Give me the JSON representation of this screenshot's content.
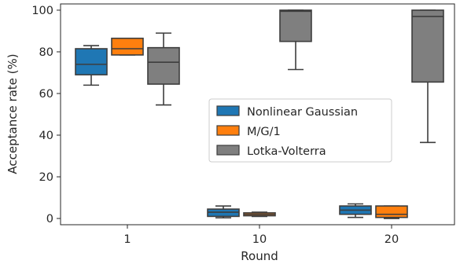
{
  "chart_data": {
    "type": "box",
    "title": "",
    "xlabel": "Round",
    "ylabel": "Acceptance rate (%)",
    "ylim": [
      -3,
      103
    ],
    "yticks": [
      0,
      20,
      40,
      60,
      80,
      100
    ],
    "categories": [
      "1",
      "10",
      "20"
    ],
    "grid": false,
    "legend_position": "center-right",
    "series": [
      {
        "name": "Nonlinear Gaussian",
        "color": "#1f77b4",
        "boxes": [
          {
            "category": "1",
            "whisker_low": 64,
            "q1": 69,
            "median": 74,
            "q3": 81.5,
            "whisker_high": 83
          },
          {
            "category": "10",
            "whisker_low": 0.3,
            "q1": 1,
            "median": 3,
            "q3": 4.5,
            "whisker_high": 6
          },
          {
            "category": "20",
            "whisker_low": 0.5,
            "q1": 2,
            "median": 4,
            "q3": 6,
            "whisker_high": 7
          }
        ]
      },
      {
        "name": "M/G/1",
        "color": "#ff7f0e",
        "boxes": [
          {
            "category": "1",
            "whisker_low": 78.5,
            "q1": 78.5,
            "median": 81.5,
            "q3": 86.5,
            "whisker_high": 86.5
          },
          {
            "category": "10",
            "whisker_low": 1,
            "q1": 1.3,
            "median": 2,
            "q3": 2.7,
            "whisker_high": 3
          },
          {
            "category": "20",
            "whisker_low": 0,
            "q1": 0.5,
            "median": 2,
            "q3": 6,
            "whisker_high": 6
          }
        ]
      },
      {
        "name": "Lotka-Volterra",
        "color": "#7f7f7f",
        "boxes": [
          {
            "category": "1",
            "whisker_low": 54.5,
            "q1": 64.5,
            "median": 75,
            "q3": 82,
            "whisker_high": 89
          },
          {
            "category": "10",
            "whisker_low": 71.5,
            "q1": 85,
            "median": 99.5,
            "q3": 100,
            "whisker_high": 100
          },
          {
            "category": "20",
            "whisker_low": 36.5,
            "q1": 65.5,
            "median": 97,
            "q3": 100,
            "whisker_high": 100
          }
        ]
      }
    ]
  }
}
